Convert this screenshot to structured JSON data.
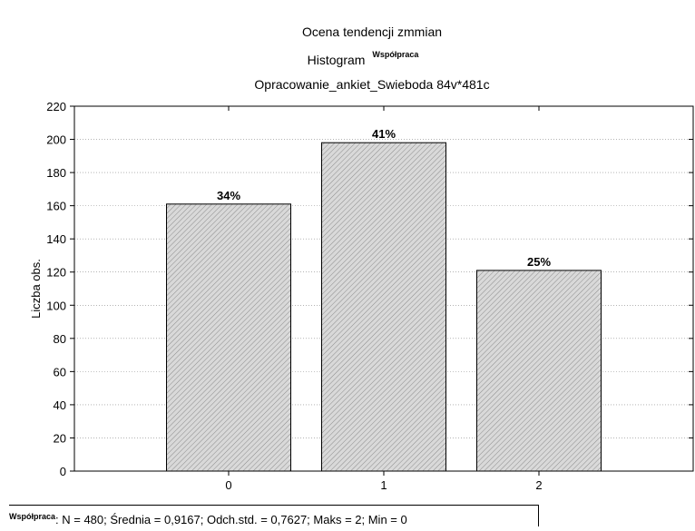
{
  "chart_data": {
    "type": "bar",
    "title_lines": [
      "Ocena tendencji zmmian",
      "Histogram",
      "Opracowanie_ankiet_Swieboda 84v*481c"
    ],
    "title_superscript": "Współpraca",
    "categories": [
      "0",
      "1",
      "2"
    ],
    "values": [
      161,
      198,
      121
    ],
    "data_labels": [
      "34%",
      "41%",
      "25%"
    ],
    "ylabel": "Liczba obs.",
    "xlabel": "",
    "ylim": [
      0,
      220
    ],
    "yticks": [
      0,
      20,
      40,
      60,
      80,
      100,
      120,
      140,
      160,
      180,
      200,
      220
    ],
    "grid": "horizontal-dotted",
    "bar_fill": "#d9d9d9",
    "bar_hatch": "#8c8c8c"
  },
  "stats": {
    "variable": "Współpraca",
    "text": ": N = 480; Średnia = 0,9167; Odch.std. = 0,7627; Maks = 2; Min = 0"
  }
}
